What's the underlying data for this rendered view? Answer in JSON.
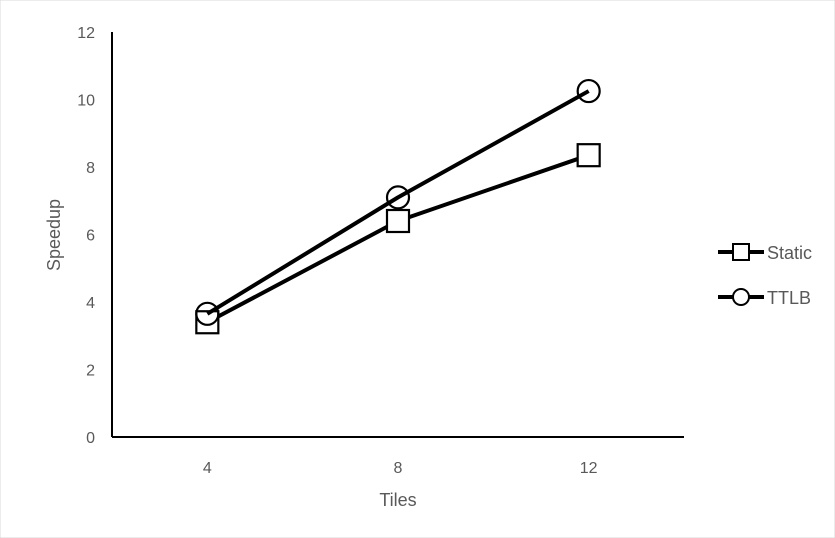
{
  "chart_data": {
    "type": "line",
    "xlabel": "Tiles",
    "ylabel": "Speedup",
    "categories": [
      "4",
      "8",
      "12"
    ],
    "ylim": [
      0,
      12
    ],
    "yticks": [
      "0",
      "2",
      "4",
      "6",
      "8",
      "10",
      "12"
    ],
    "grid": false,
    "legend_position": "right",
    "series": [
      {
        "name": "Static",
        "marker": "square",
        "values": [
          3.4,
          6.4,
          8.35
        ]
      },
      {
        "name": "TTLB",
        "marker": "circle",
        "values": [
          3.65,
          7.1,
          10.25
        ]
      }
    ],
    "colors": {
      "line": "#000000",
      "axis": "#000000",
      "text": "#595959"
    }
  }
}
